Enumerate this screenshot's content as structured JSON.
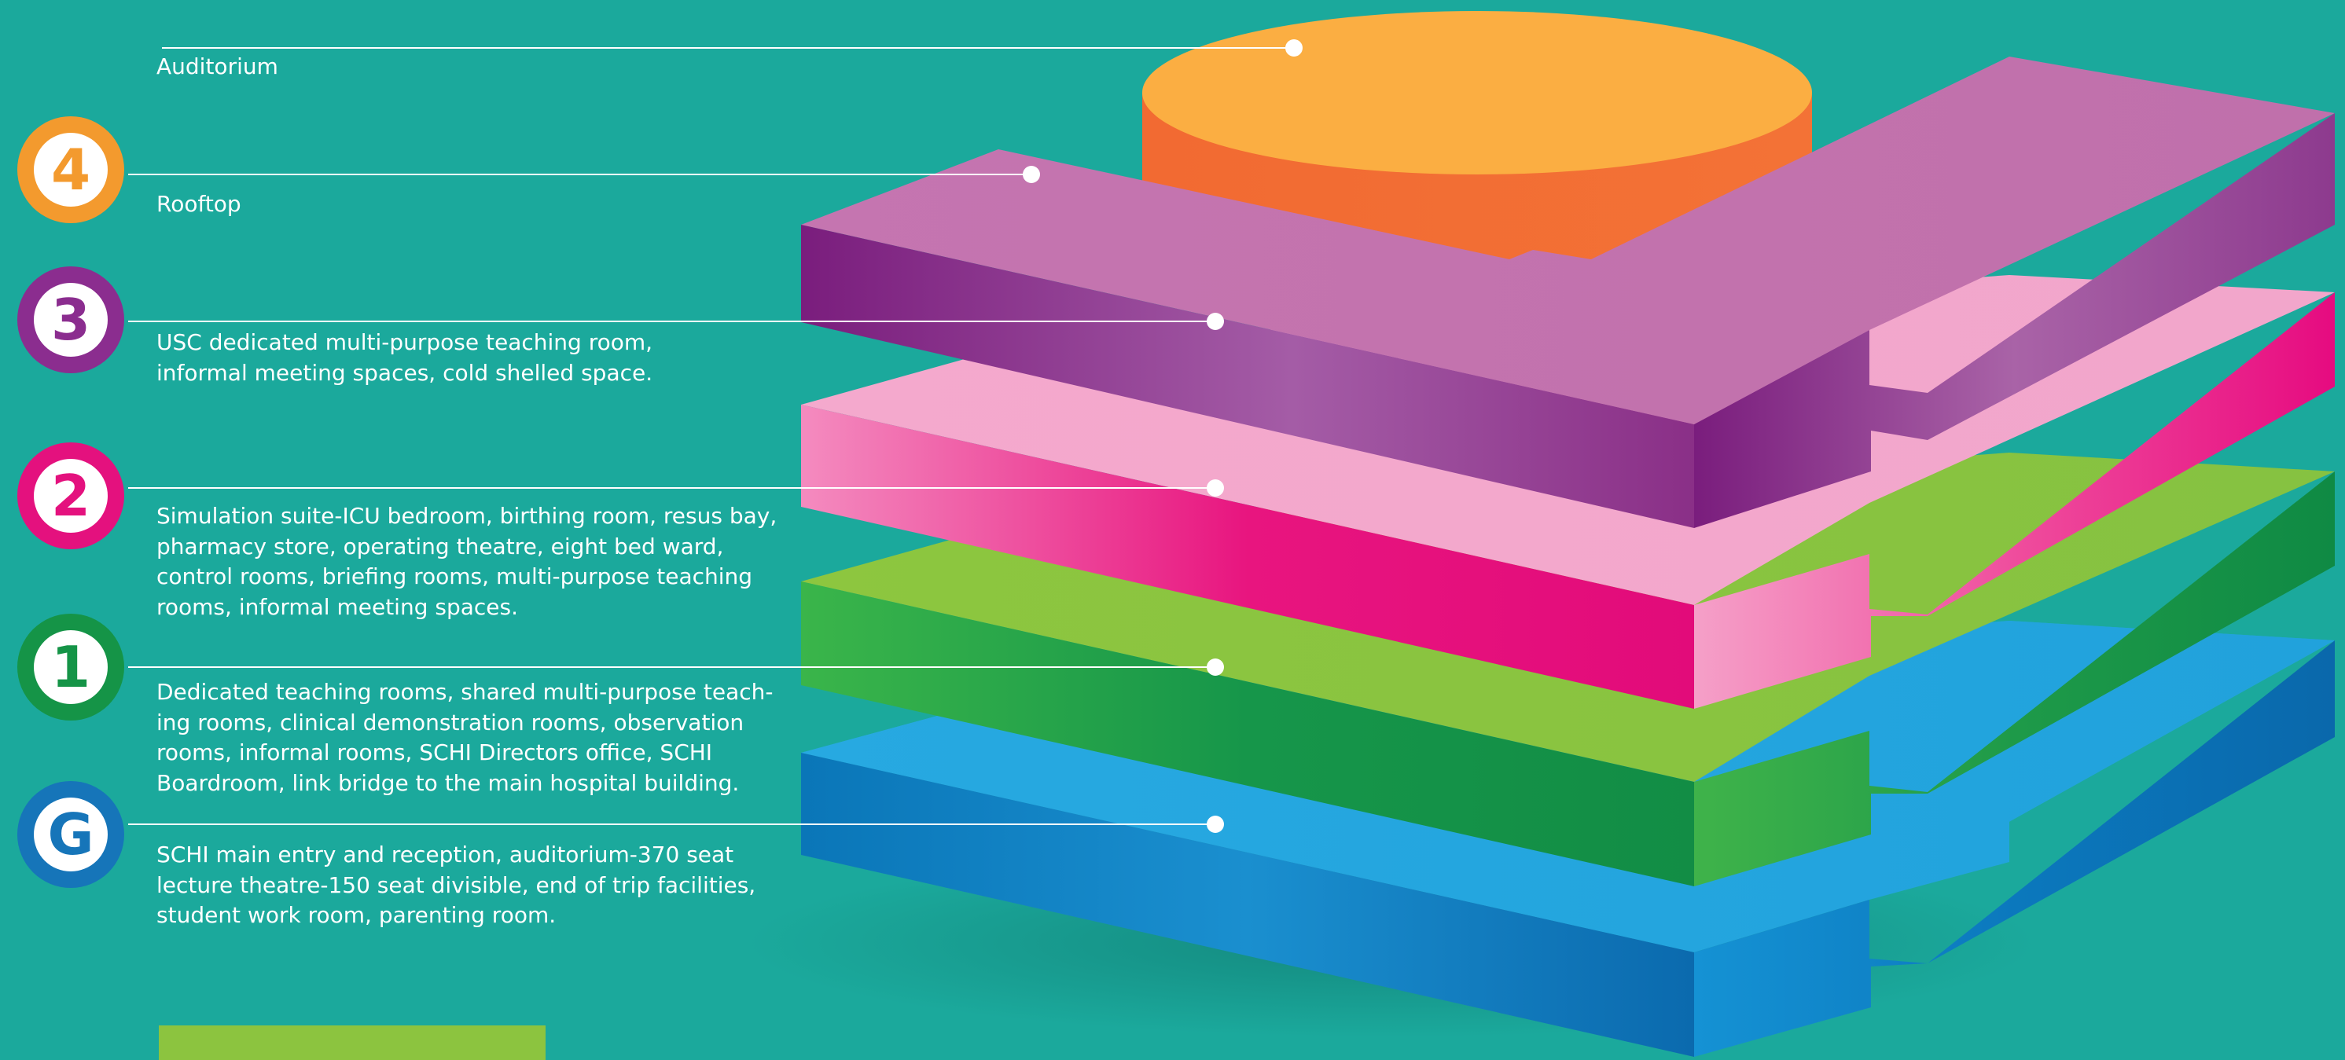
{
  "floors": [
    {
      "key": "auditorium",
      "badge": null,
      "lines": [
        "Auditorium"
      ],
      "color": "#f4a63a"
    },
    {
      "key": "rooftop",
      "badge": "4",
      "lines": [
        "Rooftop"
      ],
      "color": "#f39a2e"
    },
    {
      "key": "level3",
      "badge": "3",
      "lines": [
        "USC dedicated multi-purpose teaching room,",
        "informal meeting spaces, cold shelled space."
      ],
      "color": "#8b2d8f"
    },
    {
      "key": "level2",
      "badge": "2",
      "lines": [
        "Simulation suite-ICU bedroom, birthing room, resus bay,",
        "pharmacy store, operating theatre, eight bed ward,",
        "control rooms, briefing rooms, multi-purpose teaching",
        "rooms, informal meeting spaces."
      ],
      "color": "#e4117e"
    },
    {
      "key": "level1",
      "badge": "1",
      "lines": [
        "Dedicated teaching rooms, shared multi-purpose teach-",
        "ing rooms, clinical demonstration rooms, observation",
        "rooms, informal rooms, SCHI Directors office, SCHI",
        "Boardroom, link bridge to the main hospital building."
      ],
      "color": "#159447"
    },
    {
      "key": "ground",
      "badge": "G",
      "lines": [
        "SCHI main entry and reception, auditorium-370 seat",
        "lecture theatre-150 seat divisible, end of trip facilities,",
        "student work room, parenting room."
      ],
      "color": "#1675b9"
    }
  ],
  "colors": {
    "background": "#1ba99c",
    "swatch": "#8cc43f"
  }
}
